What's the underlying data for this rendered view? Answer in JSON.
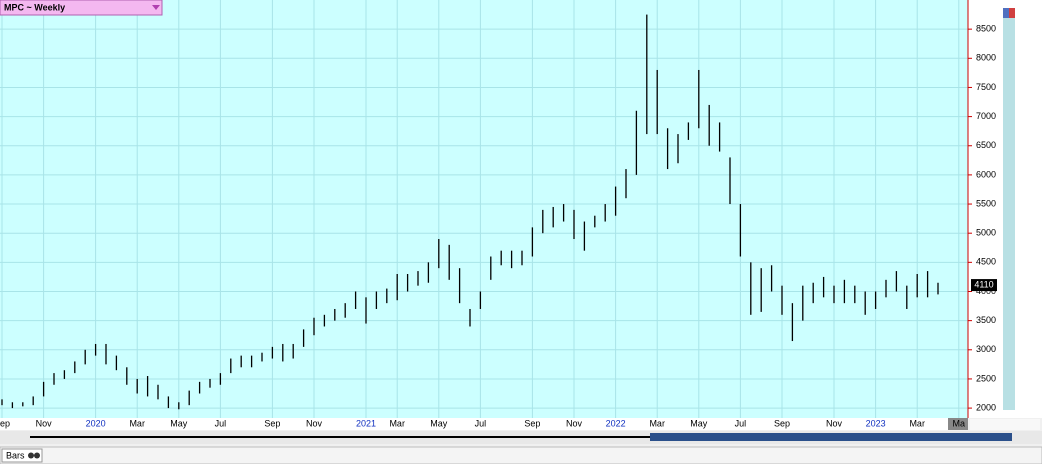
{
  "chart_data": {
    "type": "ohlc",
    "title": "MPC ~ Weekly",
    "status_label": "Bars",
    "last_price": 4110,
    "ylim": [
      1830,
      9000
    ],
    "yticks": [
      2000,
      2500,
      3000,
      3500,
      4000,
      4500,
      5000,
      5500,
      6000,
      6500,
      7000,
      7500,
      8000,
      8500
    ],
    "grid": true,
    "color": "#000000",
    "categories": [
      "Sep",
      null,
      null,
      null,
      "Nov",
      null,
      null,
      null,
      null,
      "2020",
      null,
      null,
      null,
      "Mar",
      null,
      null,
      null,
      "May",
      null,
      null,
      null,
      "Jul",
      null,
      null,
      null,
      null,
      "Sep",
      null,
      null,
      null,
      "Nov",
      null,
      null,
      null,
      null,
      "2021",
      null,
      null,
      "Mar",
      null,
      null,
      null,
      "May",
      null,
      null,
      null,
      "Jul",
      null,
      null,
      null,
      null,
      "Sep",
      null,
      null,
      null,
      "Nov",
      null,
      null,
      null,
      "2022",
      null,
      null,
      null,
      "Mar",
      null,
      null,
      null,
      "May",
      null,
      null,
      null,
      "Jul",
      null,
      null,
      null,
      "Sep",
      null,
      null,
      null,
      null,
      "Nov",
      null,
      null,
      null,
      "2023",
      null,
      null,
      null,
      "Mar",
      null,
      null,
      null,
      "Ma"
    ],
    "highs": [
      2150,
      2100,
      2100,
      2200,
      2450,
      2600,
      2650,
      2800,
      3000,
      3100,
      3100,
      2900,
      2700,
      2500,
      2550,
      2400,
      2200,
      2100,
      2300,
      2450,
      2500,
      2600,
      2850,
      2900,
      2900,
      2950,
      3050,
      3100,
      3100,
      3350,
      3550,
      3600,
      3700,
      3800,
      4000,
      3900,
      4000,
      4050,
      4300,
      4300,
      4350,
      4500,
      4900,
      4800,
      4400,
      3700,
      4000,
      4600,
      4700,
      4700,
      4700,
      5100,
      5400,
      5450,
      5500,
      5400,
      5200,
      5300,
      5500,
      5800,
      6100,
      7100,
      8750,
      7800,
      6800,
      6700,
      6900,
      7800,
      7200,
      6900,
      6300,
      5500,
      4500,
      4400,
      4450,
      4100,
      3800,
      4100,
      4150,
      4250,
      4100,
      4200,
      4100,
      4000,
      4000,
      4200,
      4350,
      4100,
      4300,
      4350,
      4150,
      null,
      null
    ],
    "lows": [
      2050,
      2000,
      2030,
      2050,
      2200,
      2400,
      2500,
      2600,
      2750,
      2900,
      2750,
      2650,
      2400,
      2250,
      2200,
      2150,
      2000,
      1980,
      2050,
      2250,
      2350,
      2400,
      2600,
      2700,
      2700,
      2800,
      2850,
      2800,
      2850,
      3050,
      3250,
      3400,
      3500,
      3550,
      3700,
      3450,
      3700,
      3800,
      3850,
      4000,
      4100,
      4150,
      4400,
      4200,
      3800,
      3400,
      3700,
      4200,
      4450,
      4400,
      4450,
      4600,
      5000,
      5100,
      5200,
      4900,
      4700,
      5100,
      5200,
      5300,
      5600,
      6000,
      6700,
      6700,
      6100,
      6200,
      6600,
      6800,
      6500,
      6400,
      5500,
      4600,
      3600,
      3650,
      4000,
      3600,
      3150,
      3500,
      3800,
      3900,
      3800,
      3800,
      3800,
      3600,
      3700,
      3900,
      4000,
      3700,
      3900,
      3900,
      3950,
      null,
      null
    ]
  }
}
